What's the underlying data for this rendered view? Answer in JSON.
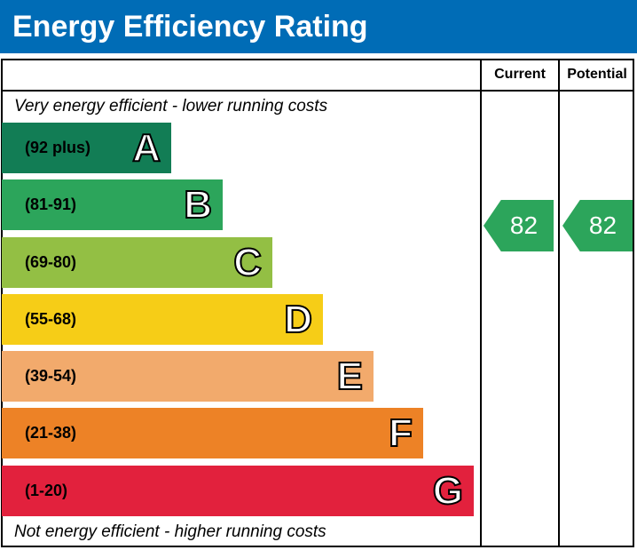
{
  "title": "Energy Efficiency Rating",
  "chart_data": {
    "type": "bar",
    "columns": [
      "Current",
      "Potential"
    ],
    "top_note": "Very energy efficient - lower running costs",
    "bottom_note": "Not energy efficient - higher running costs",
    "bands": [
      {
        "letter": "A",
        "range": "(92 plus)",
        "color": "#127d55"
      },
      {
        "letter": "B",
        "range": "(81-91)",
        "color": "#2ca55b"
      },
      {
        "letter": "C",
        "range": "(69-80)",
        "color": "#93bf44"
      },
      {
        "letter": "D",
        "range": "(55-68)",
        "color": "#f6cd17"
      },
      {
        "letter": "E",
        "range": "(39-54)",
        "color": "#f2aa6c"
      },
      {
        "letter": "F",
        "range": "(21-38)",
        "color": "#ed8226"
      },
      {
        "letter": "G",
        "range": "(1-20)",
        "color": "#e2213d"
      }
    ],
    "current": {
      "value": "82",
      "band": "B",
      "color": "#2ca55b"
    },
    "potential": {
      "value": "82",
      "band": "B",
      "color": "#2ca55b"
    }
  }
}
